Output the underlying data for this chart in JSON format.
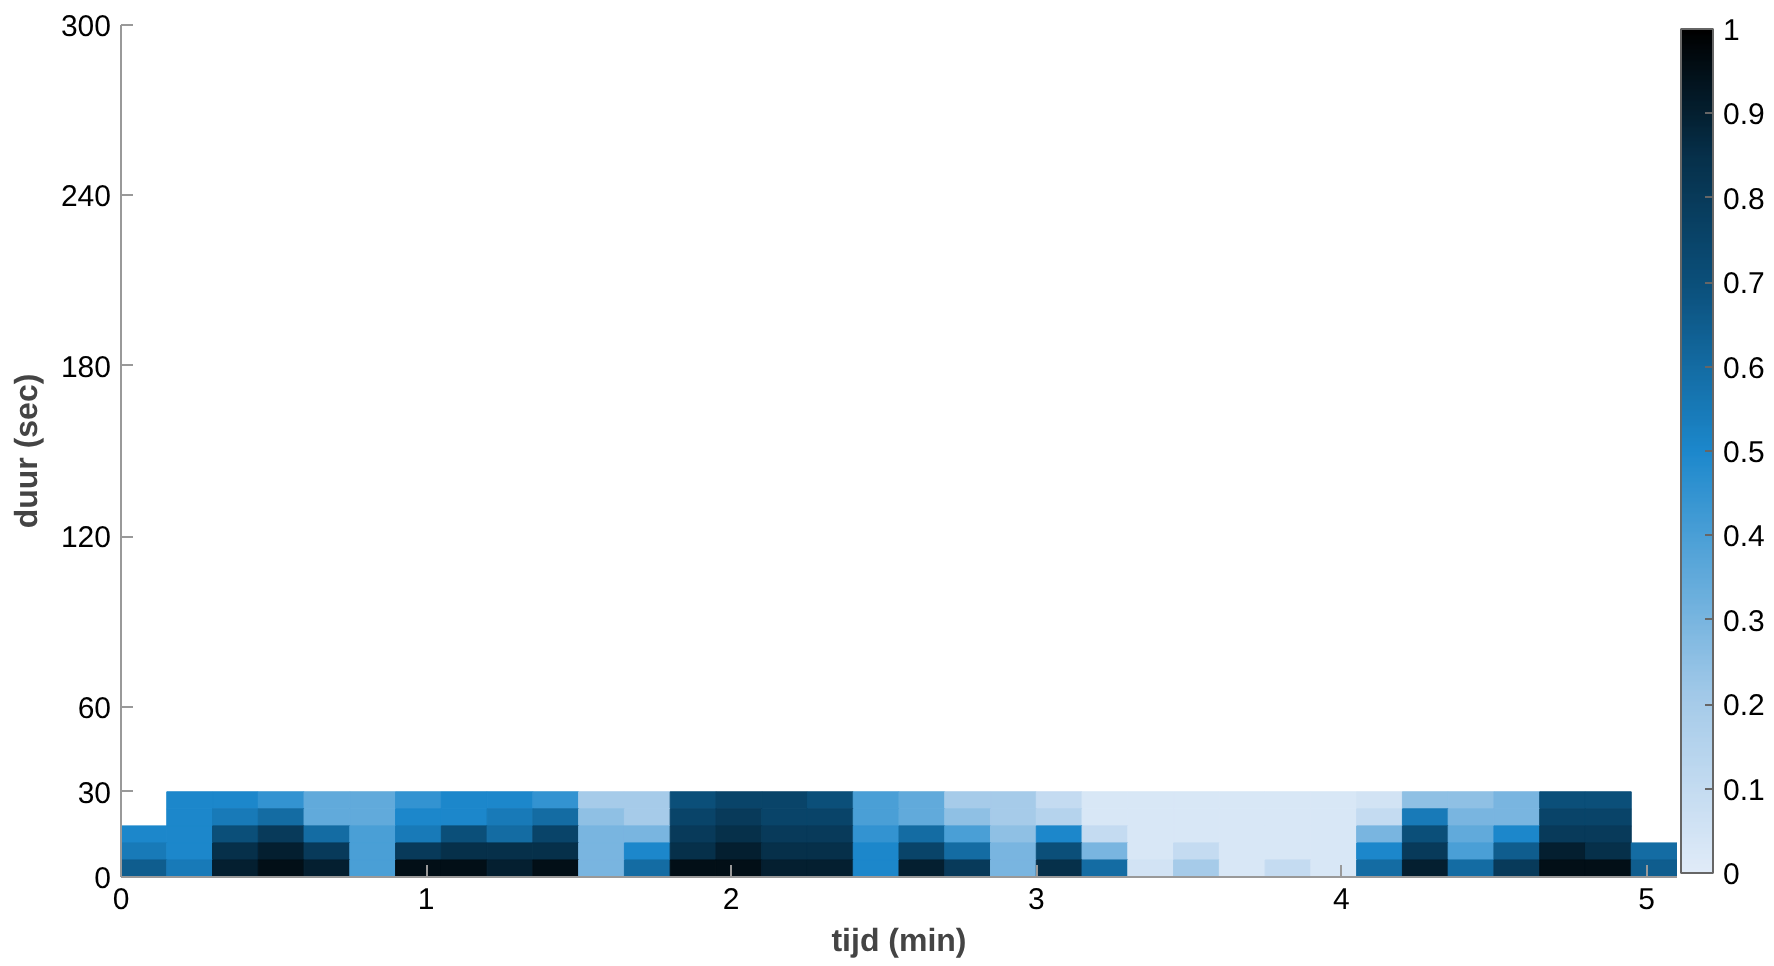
{
  "chart_data": {
    "type": "heatmap",
    "xlabel": "tijd (min)",
    "ylabel": "duur (sec)",
    "x": [
      0.075,
      0.225,
      0.375,
      0.525,
      0.675,
      0.825,
      0.975,
      1.125,
      1.275,
      1.425,
      1.575,
      1.725,
      1.875,
      2.025,
      2.175,
      2.325,
      2.475,
      2.625,
      2.775,
      2.925,
      3.075,
      3.225,
      3.375,
      3.525,
      3.675,
      3.825,
      3.975,
      4.125,
      4.275,
      4.425,
      4.575,
      4.725,
      4.875,
      5.025
    ],
    "y": [
      27,
      21,
      15,
      9,
      3
    ],
    "cells": [
      [
        null,
        0.5,
        0.5,
        0.45,
        0.35,
        0.35,
        0.45,
        0.5,
        0.5,
        0.45,
        0.2,
        0.2,
        0.7,
        0.75,
        0.75,
        0.7,
        0.4,
        0.35,
        0.2,
        0.2,
        0.1,
        0.03,
        0.03,
        0.03,
        0.03,
        0.03,
        0.03,
        0.05,
        0.25,
        0.25,
        0.3,
        0.7,
        0.7,
        null
      ],
      [
        null,
        0.5,
        0.55,
        0.6,
        0.35,
        0.35,
        0.5,
        0.5,
        0.55,
        0.6,
        0.25,
        0.2,
        0.75,
        0.8,
        0.75,
        0.75,
        0.4,
        0.35,
        0.25,
        0.2,
        0.15,
        0.03,
        0.03,
        0.03,
        0.03,
        0.03,
        0.03,
        0.1,
        0.55,
        0.3,
        0.3,
        0.75,
        0.75,
        null
      ],
      [
        0.5,
        0.5,
        0.7,
        0.8,
        0.6,
        0.4,
        0.55,
        0.7,
        0.6,
        0.75,
        0.3,
        0.3,
        0.8,
        0.85,
        0.8,
        0.8,
        0.45,
        0.6,
        0.4,
        0.25,
        0.5,
        0.1,
        0.03,
        0.03,
        0.03,
        0.03,
        0.03,
        0.3,
        0.7,
        0.35,
        0.5,
        0.8,
        0.8,
        null
      ],
      [
        0.55,
        0.5,
        0.85,
        0.9,
        0.8,
        0.4,
        0.8,
        0.85,
        0.85,
        0.85,
        0.3,
        0.5,
        0.85,
        0.9,
        0.85,
        0.85,
        0.5,
        0.75,
        0.6,
        0.3,
        0.7,
        0.3,
        0.03,
        0.1,
        0.03,
        0.03,
        0.03,
        0.5,
        0.8,
        0.4,
        0.65,
        0.9,
        0.85,
        0.6
      ],
      [
        0.65,
        0.55,
        0.9,
        0.95,
        0.9,
        0.4,
        0.95,
        0.95,
        0.9,
        0.95,
        0.3,
        0.6,
        0.95,
        0.95,
        0.9,
        0.9,
        0.5,
        0.9,
        0.8,
        0.3,
        0.85,
        0.6,
        0.05,
        0.2,
        0.03,
        0.1,
        0.03,
        0.6,
        0.9,
        0.6,
        0.8,
        0.95,
        0.95,
        0.65
      ]
    ],
    "xlim": [
      0,
      5.1
    ],
    "xticks": [
      0,
      1,
      2,
      3,
      4,
      5
    ],
    "ylim": [
      0,
      300
    ],
    "yticks": [
      0,
      30,
      60,
      120,
      180,
      240,
      300
    ],
    "clim": [
      0,
      1
    ],
    "cticks": [
      0,
      0.1,
      0.2,
      0.3,
      0.4,
      0.5,
      0.6,
      0.7,
      0.8,
      0.9,
      1
    ],
    "grid": false
  }
}
